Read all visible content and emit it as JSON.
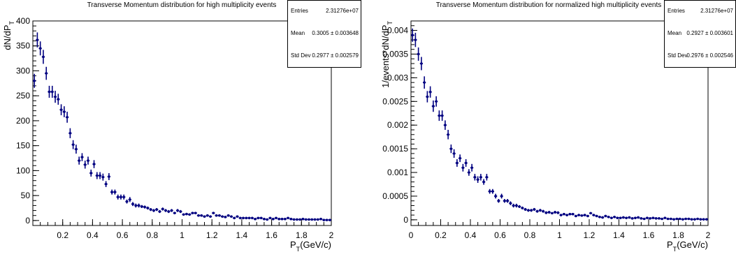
{
  "chart_data": [
    {
      "type": "scatter",
      "style": "histogram-errorbars",
      "title": "Transverse Momentum distribution for high multiplicity events",
      "xlabel": "P_T(GeV/c)",
      "ylabel": "dN/dP_T",
      "xlim": [
        0,
        2
      ],
      "ylim": [
        -10,
        400
      ],
      "xticks": [
        "0.2",
        "0.4",
        "0.6",
        "0.8",
        "1",
        "1.2",
        "1.4",
        "1.6",
        "1.8",
        "2"
      ],
      "yticks": [
        "0",
        "50",
        "100",
        "150",
        "200",
        "250",
        "300",
        "350",
        "400"
      ],
      "grid": false,
      "marker_color": "#000080",
      "stats": {
        "entries_label": "Entries",
        "entries": "2.31276e+07",
        "mean_label": "Mean",
        "mean": "0.3005 ± 0.003648",
        "std_label": "Std Dev",
        "std": "0.2977 ± 0.002579"
      },
      "x": [
        0.01,
        0.03,
        0.05,
        0.07,
        0.09,
        0.11,
        0.13,
        0.15,
        0.17,
        0.19,
        0.21,
        0.23,
        0.25,
        0.27,
        0.29,
        0.31,
        0.33,
        0.35,
        0.37,
        0.39,
        0.41,
        0.43,
        0.45,
        0.47,
        0.49,
        0.51,
        0.53,
        0.55,
        0.57,
        0.59,
        0.61,
        0.63,
        0.65,
        0.67,
        0.69,
        0.71,
        0.73,
        0.75,
        0.77,
        0.79,
        0.81,
        0.83,
        0.85,
        0.87,
        0.89,
        0.91,
        0.93,
        0.95,
        0.97,
        0.99,
        1.01,
        1.03,
        1.05,
        1.07,
        1.09,
        1.11,
        1.13,
        1.15,
        1.17,
        1.19,
        1.21,
        1.23,
        1.25,
        1.27,
        1.29,
        1.31,
        1.33,
        1.35,
        1.37,
        1.39,
        1.41,
        1.43,
        1.45,
        1.47,
        1.49,
        1.51,
        1.53,
        1.55,
        1.57,
        1.59,
        1.61,
        1.63,
        1.65,
        1.67,
        1.69,
        1.71,
        1.73,
        1.75,
        1.77,
        1.79,
        1.81,
        1.83,
        1.85,
        1.87,
        1.89,
        1.91,
        1.93,
        1.95,
        1.97,
        1.99
      ],
      "y": [
        280,
        362,
        345,
        328,
        295,
        258,
        258,
        248,
        243,
        222,
        218,
        207,
        175,
        152,
        143,
        120,
        127,
        112,
        120,
        95,
        113,
        90,
        90,
        87,
        73,
        88,
        57,
        57,
        47,
        47,
        47,
        38,
        42,
        33,
        30,
        30,
        28,
        27,
        25,
        22,
        20,
        22,
        18,
        23,
        20,
        18,
        20,
        15,
        20,
        18,
        12,
        13,
        12,
        15,
        15,
        10,
        10,
        8,
        10,
        8,
        15,
        10,
        10,
        8,
        7,
        10,
        8,
        5,
        8,
        5,
        5,
        5,
        5,
        5,
        3,
        5,
        5,
        3,
        2,
        5,
        3,
        5,
        3,
        3,
        3,
        5,
        3,
        2,
        2,
        2,
        3,
        2,
        2,
        2,
        2,
        2,
        3,
        1,
        1,
        1
      ],
      "yerr": [
        14,
        15,
        14,
        14,
        13,
        12,
        12,
        12,
        11,
        11,
        11,
        11,
        10,
        9,
        9,
        8,
        8,
        8,
        8,
        7,
        8,
        7,
        7,
        7,
        6,
        7,
        5,
        5,
        5,
        5,
        5,
        4,
        5,
        4,
        4,
        4,
        3,
        3,
        3,
        3,
        3,
        3,
        3,
        3,
        3,
        3,
        3,
        2,
        3,
        3,
        2,
        2,
        2,
        2,
        2,
        2,
        2,
        2,
        2,
        2,
        2,
        2,
        2,
        2,
        2,
        2,
        2,
        1,
        2,
        1,
        1,
        1,
        1,
        1,
        1,
        1,
        1,
        1,
        1,
        1,
        1,
        1,
        1,
        1,
        1,
        1,
        1,
        1,
        1,
        1,
        1,
        1,
        1,
        1,
        1,
        1,
        1,
        1,
        1,
        1
      ]
    },
    {
      "type": "scatter",
      "style": "histogram-errorbars",
      "title": "Transverse Momentum distribution for normalized high multiplicity events",
      "xlabel": "P_T(GeV/c)",
      "ylabel": "1/events*dN/dP_T",
      "xlim": [
        0,
        2
      ],
      "ylim": [
        -0.00012,
        0.0042
      ],
      "xticks": [
        "0",
        "0.2",
        "0.4",
        "0.6",
        "0.8",
        "1",
        "1.2",
        "1.4",
        "1.6",
        "1.8",
        "2"
      ],
      "yticks": [
        "0",
        "0.0005",
        "0.001",
        "0.0015",
        "0.002",
        "0.0025",
        "0.003",
        "0.0035",
        "0.004"
      ],
      "grid": false,
      "marker_color": "#000080",
      "stats": {
        "entries_label": "Entries",
        "entries": "2.31276e+07",
        "mean_label": "Mean",
        "mean": "0.2927 ± 0.003601",
        "std_label": "Std Dev",
        "std": "0.2976 ± 0.002546"
      },
      "x": [
        0.01,
        0.03,
        0.05,
        0.07,
        0.09,
        0.11,
        0.13,
        0.15,
        0.17,
        0.19,
        0.21,
        0.23,
        0.25,
        0.27,
        0.29,
        0.31,
        0.33,
        0.35,
        0.37,
        0.39,
        0.41,
        0.43,
        0.45,
        0.47,
        0.49,
        0.51,
        0.53,
        0.55,
        0.57,
        0.59,
        0.61,
        0.63,
        0.65,
        0.67,
        0.69,
        0.71,
        0.73,
        0.75,
        0.77,
        0.79,
        0.81,
        0.83,
        0.85,
        0.87,
        0.89,
        0.91,
        0.93,
        0.95,
        0.97,
        0.99,
        1.01,
        1.03,
        1.05,
        1.07,
        1.09,
        1.11,
        1.13,
        1.15,
        1.17,
        1.19,
        1.21,
        1.23,
        1.25,
        1.27,
        1.29,
        1.31,
        1.33,
        1.35,
        1.37,
        1.39,
        1.41,
        1.43,
        1.45,
        1.47,
        1.49,
        1.51,
        1.53,
        1.55,
        1.57,
        1.59,
        1.61,
        1.63,
        1.65,
        1.67,
        1.69,
        1.71,
        1.73,
        1.75,
        1.77,
        1.79,
        1.81,
        1.83,
        1.85,
        1.87,
        1.89,
        1.91,
        1.93,
        1.95,
        1.97,
        1.99
      ],
      "y": [
        0.0039,
        0.0038,
        0.0035,
        0.0033,
        0.0029,
        0.0026,
        0.0027,
        0.0024,
        0.0025,
        0.0022,
        0.0022,
        0.002,
        0.0018,
        0.0015,
        0.0014,
        0.0012,
        0.0013,
        0.0011,
        0.0012,
        0.001,
        0.0011,
        0.0009,
        0.00085,
        0.0009,
        0.0008,
        0.0009,
        0.0006,
        0.0006,
        0.0005,
        0.0004,
        0.0005,
        0.0004,
        0.0004,
        0.00035,
        0.0003,
        0.0003,
        0.00028,
        0.00025,
        0.00022,
        0.0002,
        0.0002,
        0.00022,
        0.00018,
        0.0002,
        0.00018,
        0.00015,
        0.00016,
        0.00014,
        0.00016,
        0.00015,
        0.0001,
        0.00012,
        0.0001,
        0.00012,
        0.00012,
        8e-05,
        0.0001,
        9e-05,
        0.0001,
        8e-05,
        0.00014,
        0.0001,
        8e-05,
        6e-05,
        5e-05,
        8e-05,
        6e-05,
        4e-05,
        6e-05,
        4e-05,
        4e-05,
        5e-05,
        4e-05,
        5e-05,
        3e-05,
        4e-05,
        5e-05,
        3e-05,
        2e-05,
        4e-05,
        3e-05,
        4e-05,
        3e-05,
        3e-05,
        2e-05,
        4e-05,
        2e-05,
        2e-05,
        1e-05,
        2e-05,
        2e-05,
        1e-05,
        2e-05,
        2e-05,
        1e-05,
        1e-05,
        2e-05,
        1e-05,
        1e-05,
        1e-05
      ],
      "yerr": [
        0.00014,
        0.00015,
        0.00014,
        0.00014,
        0.00013,
        0.00012,
        0.00012,
        0.00012,
        0.00011,
        0.00011,
        0.00011,
        0.0001,
        0.0001,
        9e-05,
        9e-05,
        8e-05,
        8e-05,
        8e-05,
        8e-05,
        7e-05,
        8e-05,
        7e-05,
        7e-05,
        7e-05,
        6e-05,
        7e-05,
        5e-05,
        5e-05,
        5e-05,
        4e-05,
        5e-05,
        4e-05,
        4e-05,
        4e-05,
        4e-05,
        4e-05,
        3e-05,
        3e-05,
        3e-05,
        3e-05,
        3e-05,
        3e-05,
        3e-05,
        3e-05,
        3e-05,
        3e-05,
        3e-05,
        2e-05,
        3e-05,
        3e-05,
        2e-05,
        2e-05,
        2e-05,
        2e-05,
        2e-05,
        2e-05,
        2e-05,
        2e-05,
        2e-05,
        2e-05,
        2e-05,
        2e-05,
        2e-05,
        2e-05,
        2e-05,
        2e-05,
        2e-05,
        1e-05,
        2e-05,
        1e-05,
        1e-05,
        1e-05,
        1e-05,
        1e-05,
        1e-05,
        1e-05,
        1e-05,
        1e-05,
        1e-05,
        1e-05,
        1e-05,
        1e-05,
        1e-05,
        1e-05,
        1e-05,
        1e-05,
        1e-05,
        1e-05,
        1e-05,
        1e-05,
        1e-05,
        1e-05,
        1e-05,
        1e-05,
        1e-05,
        1e-05,
        1e-05,
        1e-05,
        1e-05,
        1e-05
      ]
    }
  ]
}
